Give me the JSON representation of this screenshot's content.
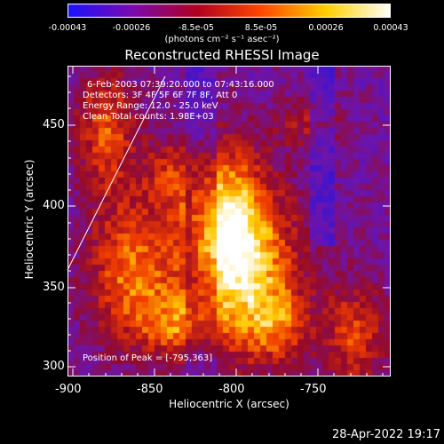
{
  "colorbar": {
    "ticks": [
      "-0.00043",
      "-0.00026",
      "-8.5e-05",
      "8.5e-05",
      "0.00026",
      "0.00043"
    ],
    "units": "(photons cm⁻² s⁻¹ asec⁻²)",
    "stops": [
      "#1a12ff",
      "#7a0ab0",
      "#b00020",
      "#ff4800",
      "#ffd000",
      "#ffffff"
    ]
  },
  "plot": {
    "title": "Reconstructed RHESSI Image",
    "xlabel": "Heliocentric X (arcsec)",
    "ylabel": "Heliocentric Y (arcsec)",
    "xticks": [
      "-900",
      "-850",
      "-800",
      "-750"
    ],
    "yticks": [
      "300",
      "350",
      "400",
      "450"
    ],
    "annotations": {
      "line1": "6-Feb-2003 07:39:20.000 to 07:43:16.000",
      "line2": "Detectors: 3F 4F 5F 6F 7F 8F, Att 0",
      "line3": "Energy Range: 12.0 - 25.0 keV",
      "line4": "Clean    Total counts: 1.98E+03",
      "peak": "Position of Peak = [-795,363]"
    }
  },
  "timestamp": "28-Apr-2022 19:17"
}
